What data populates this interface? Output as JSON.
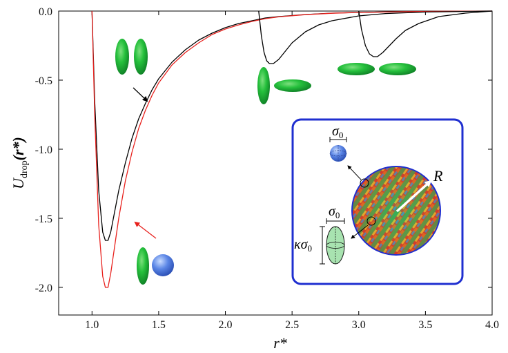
{
  "chart_data": {
    "type": "line",
    "xlabel": "r*",
    "ylabel": "U",
    "ylabel_subscript": "drop",
    "ylabel_arg": "(r*)",
    "xlim": [
      0.75,
      4.0
    ],
    "ylim": [
      -2.2,
      0.0
    ],
    "xticks": [
      1.0,
      1.5,
      2.0,
      2.5,
      3.0,
      3.5,
      4.0
    ],
    "xtick_labels": [
      "1.0",
      "1.5",
      "2.0",
      "2.5",
      "3.0",
      "3.5",
      "4.0"
    ],
    "yticks": [
      0.0,
      -0.5,
      -1.0,
      -1.5,
      -2.0
    ],
    "ytick_labels": [
      "0.0",
      "-0.5",
      "-1.0",
      "-1.5",
      "-2.0"
    ],
    "grid": false,
    "series": [
      {
        "color": "#000000",
        "x": [
          1.0,
          1.02,
          1.05,
          1.08,
          1.1,
          1.12,
          1.14,
          1.17,
          1.2,
          1.25,
          1.3,
          1.35,
          1.4,
          1.45,
          1.5,
          1.6,
          1.7,
          1.8,
          1.9,
          2.0,
          2.1,
          2.2,
          2.3,
          2.4,
          2.6,
          2.8,
          3.0,
          3.3,
          3.6,
          4.0
        ],
        "y": [
          0.0,
          -0.65,
          -1.3,
          -1.6,
          -1.66,
          -1.66,
          -1.6,
          -1.45,
          -1.3,
          -1.1,
          -0.92,
          -0.78,
          -0.67,
          -0.57,
          -0.49,
          -0.37,
          -0.28,
          -0.21,
          -0.16,
          -0.12,
          -0.09,
          -0.07,
          -0.05,
          -0.04,
          -0.025,
          -0.015,
          -0.01,
          -0.005,
          -0.002,
          0.0
        ]
      },
      {
        "color": "#e8211d",
        "x": [
          1.0,
          1.02,
          1.05,
          1.08,
          1.1,
          1.12,
          1.14,
          1.17,
          1.2,
          1.25,
          1.3,
          1.35,
          1.4,
          1.45,
          1.5,
          1.6,
          1.7,
          1.8,
          1.9,
          2.0,
          2.1,
          2.2,
          2.3,
          2.4,
          2.6,
          2.8,
          3.0,
          3.3,
          3.6,
          4.0
        ],
        "y": [
          0.0,
          -0.75,
          -1.55,
          -1.92,
          -2.0,
          -2.0,
          -1.9,
          -1.7,
          -1.5,
          -1.23,
          -1.02,
          -0.85,
          -0.72,
          -0.61,
          -0.52,
          -0.39,
          -0.3,
          -0.23,
          -0.17,
          -0.13,
          -0.1,
          -0.075,
          -0.055,
          -0.042,
          -0.026,
          -0.016,
          -0.01,
          -0.005,
          -0.002,
          0.0
        ]
      },
      {
        "color": "#000000",
        "x": [
          2.25,
          2.27,
          2.29,
          2.31,
          2.33,
          2.36,
          2.4,
          2.45,
          2.5,
          2.6,
          2.7,
          2.8,
          3.0,
          3.2,
          3.5,
          4.0
        ],
        "y": [
          0.0,
          -0.18,
          -0.3,
          -0.36,
          -0.38,
          -0.38,
          -0.35,
          -0.29,
          -0.23,
          -0.15,
          -0.1,
          -0.07,
          -0.035,
          -0.018,
          -0.007,
          0.0
        ]
      },
      {
        "color": "#000000",
        "x": [
          3.0,
          3.02,
          3.05,
          3.08,
          3.11,
          3.14,
          3.18,
          3.22,
          3.28,
          3.35,
          3.45,
          3.6,
          3.8,
          4.0
        ],
        "y": [
          0.0,
          -0.13,
          -0.25,
          -0.31,
          -0.33,
          -0.33,
          -0.3,
          -0.26,
          -0.2,
          -0.14,
          -0.09,
          -0.04,
          -0.015,
          0.0
        ]
      }
    ],
    "annotations": {
      "inset_labels": [
        "σ",
        "σ",
        "κσ",
        "R"
      ],
      "inset_label_subscripts": [
        "0",
        "0",
        "0",
        ""
      ]
    },
    "colors": {
      "inset_border": "#1f2fd0",
      "particle_green": "#22c03a",
      "particle_blue": "#5b86e6",
      "arrow_red": "#e8211d",
      "arrow_black": "#000000",
      "inset_arrow": "#ffffff"
    }
  }
}
